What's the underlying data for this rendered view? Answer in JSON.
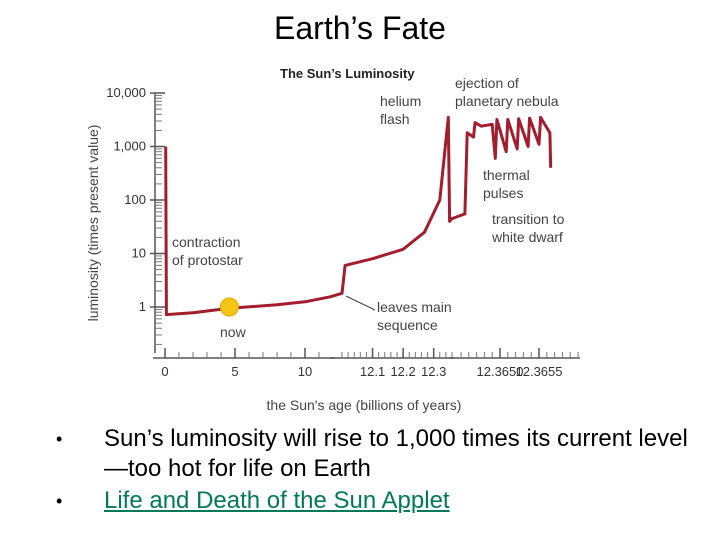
{
  "slide": {
    "title": "Earth’s Fate",
    "bullets": [
      {
        "text": "Sun’s luminosity will rise to 1,000 times its current level—too hot for life on Earth",
        "link": false
      },
      {
        "text": "Life and Death of the Sun Applet",
        "link": true
      }
    ]
  },
  "chart_data": {
    "type": "line",
    "title": "The Sun’s Luminosity",
    "xlabel": "the Sun's age (billions of years)",
    "ylabel": "luminosity (times present value)",
    "y_scale": "log",
    "ylim": [
      0.1,
      10000
    ],
    "y_ticks": [
      {
        "value": 1,
        "label": "1"
      },
      {
        "value": 10,
        "label": "10"
      },
      {
        "value": 100,
        "label": "100"
      },
      {
        "value": 1000,
        "label": "1,000"
      },
      {
        "value": 10000,
        "label": "10,000"
      }
    ],
    "x_segments": [
      {
        "range": [
          0,
          12
        ],
        "ticks": [
          {
            "value": 0,
            "label": "0"
          },
          {
            "value": 5,
            "label": "5"
          },
          {
            "value": 10,
            "label": "10"
          }
        ]
      },
      {
        "range": [
          12,
          12.36
        ],
        "ticks": [
          {
            "value": 12.1,
            "label": "12.1"
          },
          {
            "value": 12.2,
            "label": "12.2"
          },
          {
            "value": 12.3,
            "label": "12.3"
          }
        ]
      },
      {
        "range": [
          12.3645,
          12.366
        ],
        "ticks": [
          {
            "value": 12.365,
            "label": "12.3650"
          },
          {
            "value": 12.3655,
            "label": "12.3655"
          }
        ]
      }
    ],
    "grid": false,
    "series": [
      {
        "color": "#a31d2e",
        "points": [
          [
            0.05,
            1000
          ],
          [
            0.1,
            0.72
          ],
          [
            2,
            0.78
          ],
          [
            4.6,
            0.95
          ],
          [
            8,
            1.1
          ],
          [
            10,
            1.25
          ],
          [
            11.8,
            1.55
          ],
          [
            12.0,
            1.8
          ],
          [
            12.01,
            6
          ],
          [
            12.1,
            8
          ],
          [
            12.2,
            12
          ],
          [
            12.27,
            25
          ],
          [
            12.32,
            100
          ],
          [
            12.348,
            3500
          ],
          [
            12.352,
            40
          ],
          [
            12.36,
            45
          ],
          [
            12.36455,
            55
          ],
          [
            12.36458,
            1800
          ],
          [
            12.36466,
            1500
          ],
          [
            12.36468,
            2800
          ],
          [
            12.36476,
            2400
          ],
          [
            12.3649,
            2600
          ],
          [
            12.36494,
            600
          ],
          [
            12.36496,
            3200
          ],
          [
            12.36508,
            800
          ],
          [
            12.3651,
            3200
          ],
          [
            12.36522,
            900
          ],
          [
            12.36524,
            3300
          ],
          [
            12.36536,
            1000
          ],
          [
            12.36538,
            3400
          ],
          [
            12.3655,
            1100
          ],
          [
            12.36552,
            3500
          ],
          [
            12.36564,
            1800
          ],
          [
            12.36565,
            400
          ]
        ]
      }
    ],
    "annotations": [
      {
        "lines": [
          "helium",
          "flash"
        ]
      },
      {
        "lines": [
          "ejection of",
          "planetary nebula"
        ]
      },
      {
        "lines": [
          "thermal",
          "pulses"
        ]
      },
      {
        "lines": [
          "transition to",
          "white dwarf"
        ]
      },
      {
        "lines": [
          "contraction",
          "of protostar"
        ]
      },
      {
        "lines": [
          "leaves main",
          "sequence"
        ]
      },
      {
        "lines": [
          "now"
        ]
      }
    ],
    "now_marker": {
      "x": 4.6,
      "y": 1.0,
      "color": "#f5c518"
    }
  }
}
